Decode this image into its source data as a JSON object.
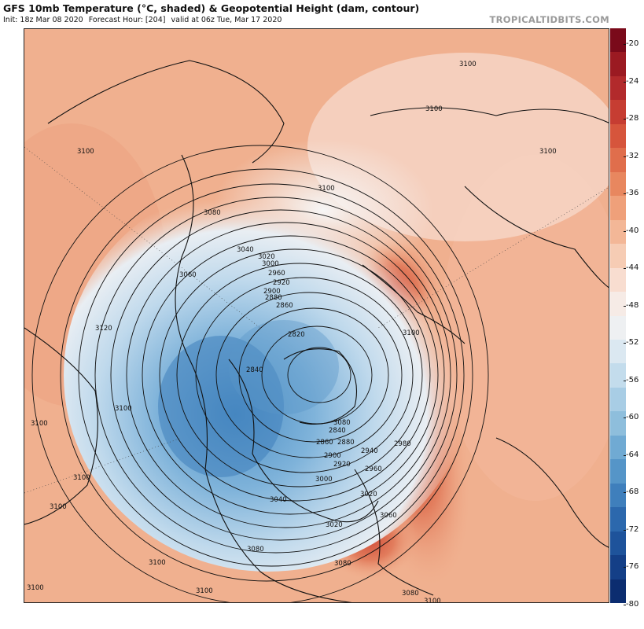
{
  "header": {
    "title": "GFS 10mb Temperature (°C, shaded) & Geopotential Height (dam, contour)",
    "init": "Init: 18z Mar 08 2020",
    "forecast_hour": "Forecast Hour: [204]",
    "valid": "valid at 06z Tue, Mar 17 2020",
    "brand": "TROPICALTIDBITS.COM"
  },
  "colorbar": {
    "ticks": [
      "-20",
      "-24",
      "-28",
      "-32",
      "-36",
      "-40",
      "-44",
      "-48",
      "-52",
      "-56",
      "-60",
      "-64",
      "-68",
      "-72",
      "-76",
      "-80"
    ],
    "colors": [
      "#7a0a1a",
      "#9b1a22",
      "#b22a2c",
      "#c63d32",
      "#d6553c",
      "#e06e4c",
      "#e8875f",
      "#efa07a",
      "#f3b797",
      "#f6ccb4",
      "#f8ddd0",
      "#f6ebe6",
      "#eef0f2",
      "#dbe8f1",
      "#c3dcec",
      "#a8cde5",
      "#8ebedc",
      "#70aad3",
      "#5595c8",
      "#3f7fbc",
      "#2c68ad",
      "#1e539b",
      "#143f87",
      "#0c2d70"
    ]
  },
  "map": {
    "contour_labels": [
      "3100",
      "3100",
      "3100",
      "3100",
      "3100",
      "3080",
      "3060",
      "3040",
      "3020",
      "3000",
      "2960",
      "2920",
      "2900",
      "2880",
      "2860",
      "2820",
      "2840",
      "3120",
      "3100",
      "3100",
      "3100",
      "3100",
      "3100",
      "3100",
      "3080",
      "2840",
      "2860",
      "2880",
      "2900",
      "2920",
      "2940",
      "2960",
      "3000",
      "2980",
      "3020",
      "3040",
      "3020",
      "3060",
      "3080",
      "3100",
      "3100",
      "3080",
      "3080",
      "3100"
    ]
  }
}
